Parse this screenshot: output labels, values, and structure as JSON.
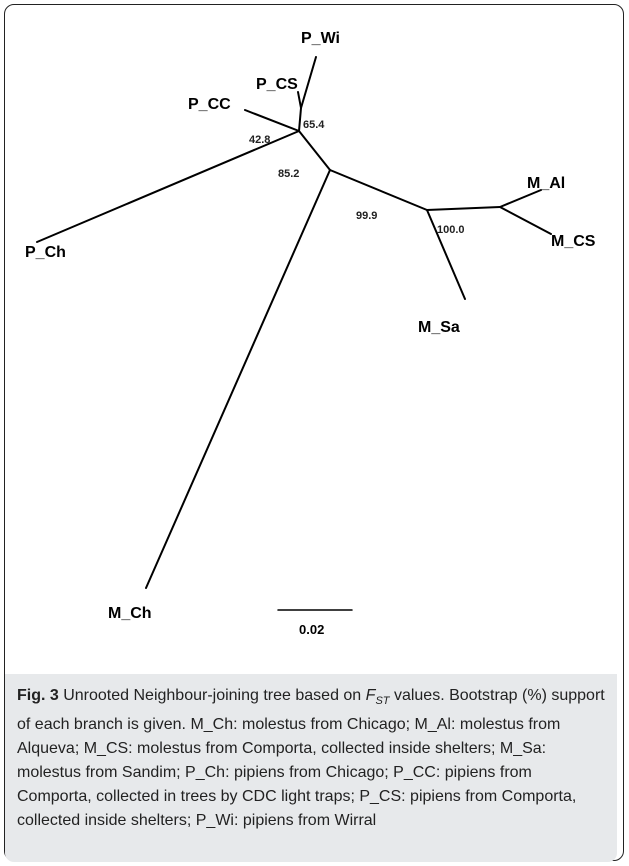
{
  "figure": {
    "tips": [
      {
        "id": "P_Wi",
        "label": "P_Wi"
      },
      {
        "id": "P_CS",
        "label": "P_CS"
      },
      {
        "id": "P_CC",
        "label": "P_CC"
      },
      {
        "id": "P_Ch",
        "label": "P_Ch"
      },
      {
        "id": "M_Al",
        "label": "M_Al"
      },
      {
        "id": "M_CS",
        "label": "M_CS"
      },
      {
        "id": "M_Sa",
        "label": "M_Sa"
      },
      {
        "id": "M_Ch",
        "label": "M_Ch"
      }
    ],
    "bootstrap": [
      "65.4",
      "42.8",
      "85.2",
      "99.9",
      "100.0"
    ],
    "scale_bar": "0.02",
    "caption": {
      "fig_label": "Fig. 3",
      "title_pre": " Unrooted Neighbour-joining tree based on ",
      "fst_main": "F",
      "fst_sub": "ST",
      "title_post": " values. Bootstrap (%) support of each branch is given. M_Ch: molestus from Chicago; M_Al: molestus from Alqueva; M_CS: molestus from Comporta, collected inside shelters; M_Sa: molestus from Sandim; P_Ch: pipiens from Chicago; P_CC: pipiens from Comporta, collected in trees by CDC light traps; P_CS: pipiens from Comporta, collected inside shelters; P_Wi: pipiens from Wirral"
    }
  }
}
